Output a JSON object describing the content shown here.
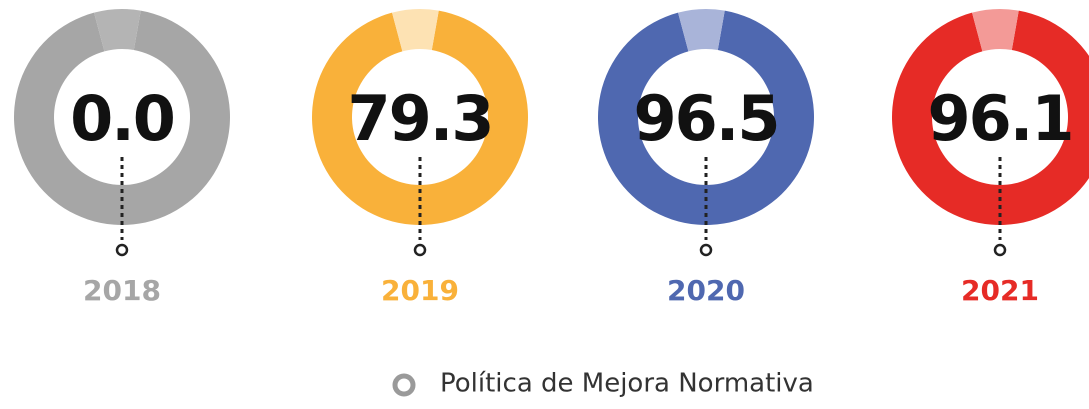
{
  "chart_data": {
    "type": "kpi-donut",
    "categories": [
      "2018",
      "2019",
      "2020",
      "2021"
    ],
    "series": [
      {
        "name": "Política de Mejora Normativa",
        "values": [
          0,
          79.3,
          96.5,
          96.1
        ],
        "value_labels": [
          "0.0",
          "79.3",
          "96.5",
          "96.1"
        ]
      }
    ],
    "colors": [
      "#a6a6a6",
      "#f9b13a",
      "#4f68b0",
      "#e62b26"
    ],
    "light_colors": [
      "#b4b4b4",
      "#fde2b3",
      "#a9b4d9",
      "#f39a97"
    ],
    "legend_color": "#9a9a9a"
  }
}
